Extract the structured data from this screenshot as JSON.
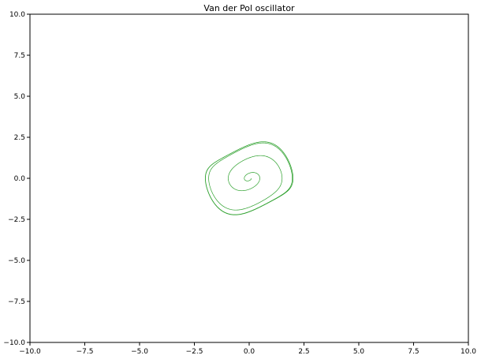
{
  "chart_data": {
    "type": "line",
    "title": "Van der Pol oscillator",
    "xlabel": "",
    "ylabel": "",
    "xlim": [
      -10,
      10
    ],
    "ylim": [
      -10,
      10
    ],
    "grid": false,
    "legend": "none",
    "x_ticks": [
      -10.0,
      -7.5,
      -5.0,
      -2.5,
      0.0,
      2.5,
      5.0,
      7.5,
      10.0
    ],
    "x_tick_labels": [
      "−10.0",
      "−7.5",
      "−5.0",
      "−2.5",
      "0.0",
      "2.5",
      "5.0",
      "7.5",
      "10.0"
    ],
    "y_ticks": [
      -10.0,
      -7.5,
      -5.0,
      -2.5,
      0.0,
      2.5,
      5.0,
      7.5,
      10.0
    ],
    "y_tick_labels": [
      "−10.0",
      "−7.5",
      "−5.0",
      "−2.5",
      "0.0",
      "2.5",
      "5.0",
      "7.5",
      "10.0"
    ],
    "series": [
      {
        "color": "#2ca02c",
        "mu": 0.5,
        "x0": 0.1,
        "y0": 0.0,
        "t_end": 60,
        "dt": 0.01
      }
    ]
  }
}
